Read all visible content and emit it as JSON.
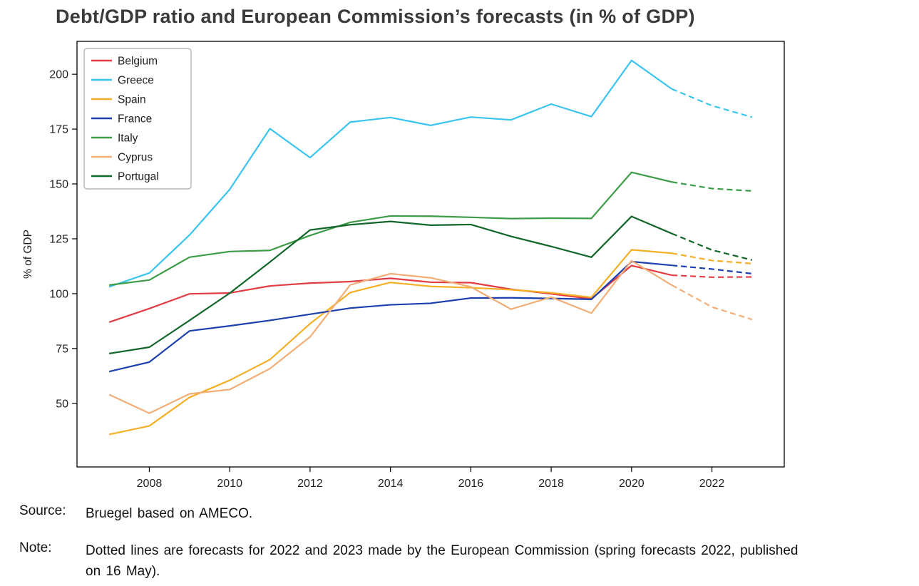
{
  "title": "Debt/GDP ratio and European Commission’s forecasts (in % of GDP)",
  "source": {
    "label": "Source:",
    "text": "Bruegel based on AMECO."
  },
  "note": {
    "label": "Note:",
    "text": "Dotted lines are forecasts for 2022 and 2023 made by the European Commission (spring forecasts 2022, published\non 16 May)."
  },
  "chart_data": {
    "type": "line",
    "title": "Debt/GDP ratio and European Commission’s forecasts (in % of GDP)",
    "xlabel": "",
    "ylabel": "% of GDP",
    "xlim": [
      2006.2,
      2023.8
    ],
    "ylim": [
      21,
      215
    ],
    "xticks": [
      2008,
      2010,
      2012,
      2014,
      2016,
      2018,
      2020,
      2022
    ],
    "yticks": [
      50,
      75,
      100,
      125,
      150,
      175,
      200
    ],
    "grid": false,
    "legend_position": "upper left",
    "years": [
      2007,
      2008,
      2009,
      2010,
      2011,
      2012,
      2013,
      2014,
      2015,
      2016,
      2017,
      2018,
      2019,
      2020,
      2021,
      2022,
      2023
    ],
    "forecast_start_year": 2021,
    "forecast_note": "values for 2022 and 2023 are dashed forecast lines",
    "series": [
      {
        "name": "Belgium",
        "color": "#e23c44",
        "values": [
          87.0,
          93.2,
          99.9,
          100.3,
          103.5,
          104.8,
          105.5,
          107.0,
          105.2,
          105.0,
          102.0,
          99.9,
          97.6,
          112.8,
          108.4,
          107.5,
          107.6
        ]
      },
      {
        "name": "Greece",
        "color": "#3bc4f0",
        "values": [
          103.1,
          109.4,
          126.7,
          147.5,
          175.2,
          162.0,
          178.2,
          180.3,
          176.7,
          180.5,
          179.2,
          186.4,
          180.7,
          206.3,
          193.3,
          185.7,
          180.4
        ]
      },
      {
        "name": "Spain",
        "color": "#f5af27",
        "values": [
          35.8,
          39.7,
          52.7,
          60.5,
          69.9,
          86.3,
          100.5,
          105.1,
          103.3,
          102.7,
          101.8,
          100.4,
          98.3,
          120.0,
          118.4,
          115.1,
          113.7
        ]
      },
      {
        "name": "France",
        "color": "#1c3fae",
        "values": [
          64.5,
          68.8,
          83.0,
          85.3,
          87.8,
          90.6,
          93.4,
          94.9,
          95.6,
          98.0,
          98.1,
          97.8,
          97.4,
          114.6,
          112.9,
          111.2,
          109.1
        ]
      },
      {
        "name": "Italy",
        "color": "#3d9c47",
        "values": [
          103.9,
          106.2,
          116.6,
          119.2,
          119.7,
          126.5,
          132.5,
          135.4,
          135.3,
          134.8,
          134.2,
          134.4,
          134.3,
          155.3,
          150.9,
          147.9,
          146.8
        ]
      },
      {
        "name": "Cyprus",
        "color": "#f2ae77",
        "values": [
          54.0,
          45.5,
          54.3,
          56.3,
          65.8,
          80.3,
          104.0,
          109.1,
          107.2,
          103.1,
          92.9,
          98.4,
          91.1,
          115.0,
          103.9,
          93.9,
          88.2
        ]
      },
      {
        "name": "Portugal",
        "color": "#11672a",
        "values": [
          72.7,
          75.6,
          87.8,
          100.2,
          114.4,
          129.0,
          131.4,
          132.9,
          131.2,
          131.5,
          126.1,
          121.5,
          116.6,
          135.2,
          127.4,
          119.9,
          115.3
        ]
      }
    ]
  }
}
